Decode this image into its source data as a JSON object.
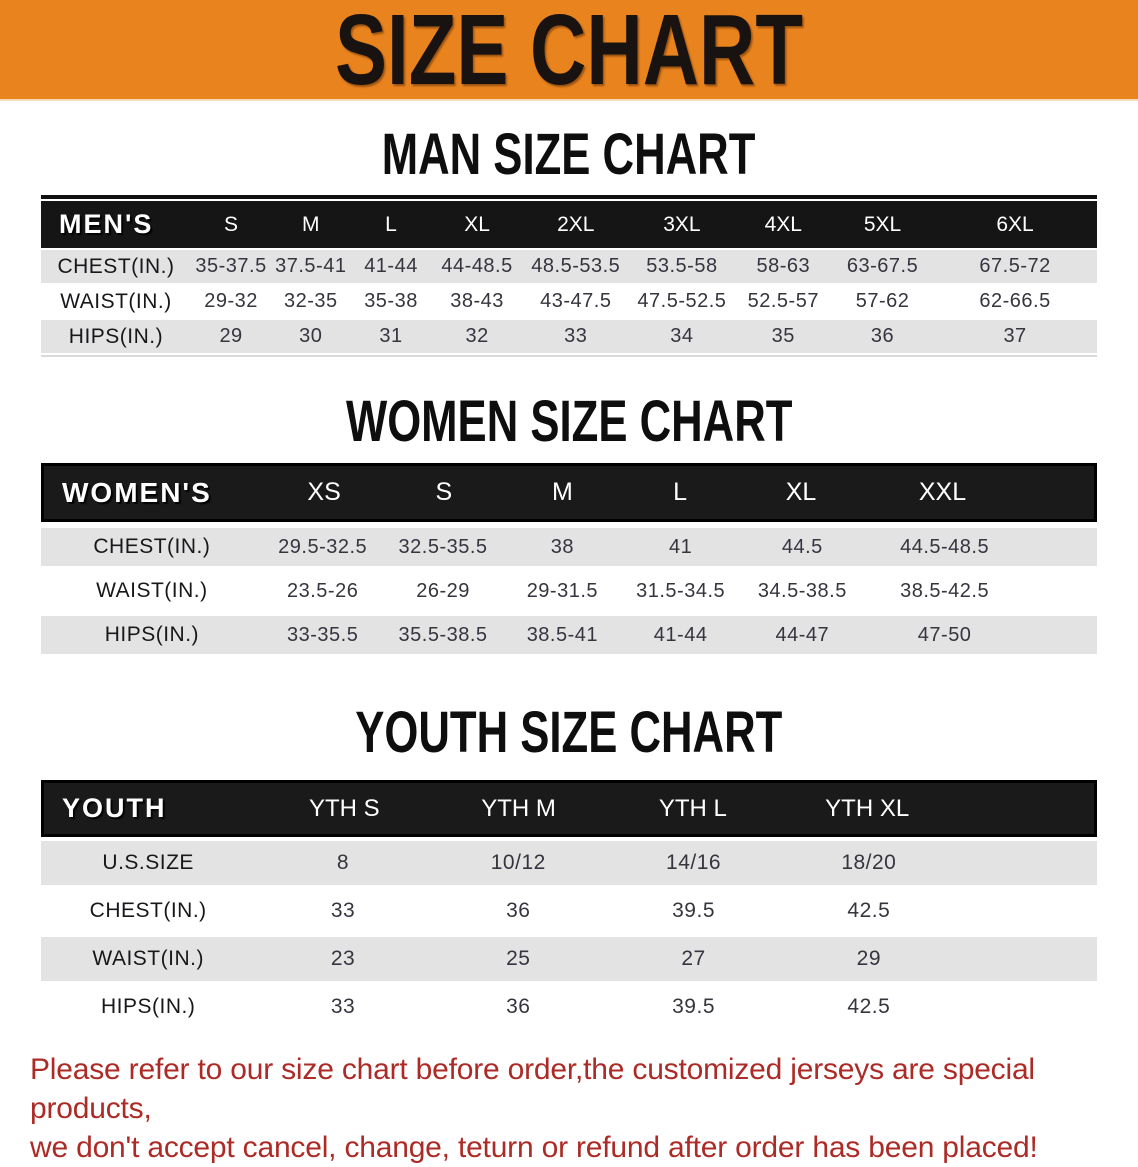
{
  "banner": {
    "title": "SIZE CHART"
  },
  "colors": {
    "banner_bg": "#E8831E",
    "header_band": "#151515",
    "row_shade": "#E3E3E4",
    "disclaimer_text": "#AC2B26"
  },
  "men": {
    "title": "MAN SIZE CHART",
    "table": {
      "name": "MEN'S",
      "sizes": [
        "S",
        "M",
        "L",
        "XL",
        "2XL",
        "3XL",
        "4XL",
        "5XL",
        "6XL"
      ],
      "col_widths": [
        "14.2%",
        "7.6%",
        "7.5%",
        "7.7%",
        "8.6%",
        "10.1%",
        "10%",
        "9.2%",
        "9.6%",
        "15.5%"
      ],
      "rows": [
        {
          "label": "CHEST(IN.)",
          "values": [
            "35-37.5",
            "37.5-41",
            "41-44",
            "44-48.5",
            "48.5-53.5",
            "53.5-58",
            "58-63",
            "63-67.5",
            "67.5-72"
          ]
        },
        {
          "label": "WAIST(IN.)",
          "values": [
            "29-32",
            "32-35",
            "35-38",
            "38-43",
            "43-47.5",
            "47.5-52.5",
            "52.5-57",
            "57-62",
            "62-66.5"
          ]
        },
        {
          "label": "HIPS(IN.)",
          "values": [
            "29",
            "30",
            "31",
            "32",
            "33",
            "34",
            "35",
            "36",
            "37"
          ]
        }
      ]
    }
  },
  "women": {
    "title": "WOMEN SIZE CHART",
    "table": {
      "name": "WOMEN'S",
      "sizes": [
        "XS",
        "S",
        "M",
        "L",
        "XL",
        "XXL"
      ],
      "col_widths": [
        "21%",
        "11.35%",
        "11.45%",
        "11.15%",
        "11.25%",
        "11.8%",
        "15.15%",
        "6.85%"
      ],
      "rows": [
        {
          "label": "CHEST(IN.)",
          "values": [
            "29.5-32.5",
            "32.5-35.5",
            "38",
            "41",
            "44.5",
            "44.5-48.5"
          ]
        },
        {
          "label": "WAIST(IN.)",
          "values": [
            "23.5-26",
            "26-29",
            "29-31.5",
            "31.5-34.5",
            "34.5-38.5",
            "38.5-42.5"
          ]
        },
        {
          "label": "HIPS(IN.)",
          "values": [
            "33-35.5",
            "35.5-38.5",
            "38.5-41",
            "41-44",
            "44-47",
            "47-50"
          ]
        }
      ]
    }
  },
  "youth": {
    "title": "YOUTH SIZE CHART",
    "table": {
      "name": "YOUTH",
      "sizes": [
        "YTH S",
        "YTH M",
        "YTH L",
        "YTH XL"
      ],
      "col_widths": [
        "20.3%",
        "16.6%",
        "16.6%",
        "16.6%",
        "16.6%",
        "13.3%"
      ],
      "rows": [
        {
          "label": "U.S.SIZE",
          "values": [
            "8",
            "10/12",
            "14/16",
            "18/20"
          ]
        },
        {
          "label": "CHEST(IN.)",
          "values": [
            "33",
            "36",
            "39.5",
            "42.5"
          ]
        },
        {
          "label": "WAIST(IN.)",
          "values": [
            "23",
            "25",
            "27",
            "29"
          ]
        },
        {
          "label": "HIPS(IN.)",
          "values": [
            "33",
            "36",
            "39.5",
            "42.5"
          ]
        }
      ]
    }
  },
  "disclaimer": {
    "line1": "Please refer to our size chart before order,the customized jerseys are special products,",
    "line2": "we don't accept cancel, change, teturn or refund after order has been placed!"
  }
}
